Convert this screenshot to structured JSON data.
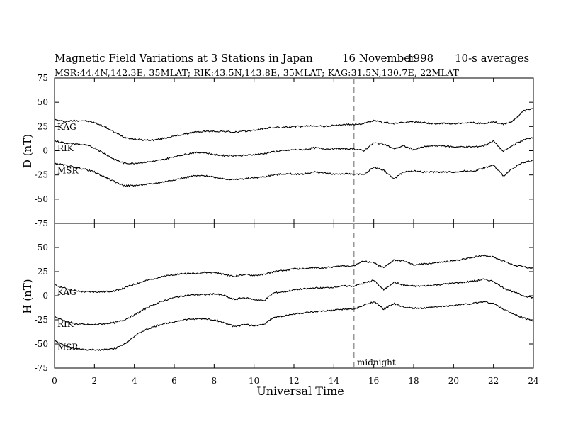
{
  "header": {
    "title": "Magnetic Field Variations at 3 Stations in Japan",
    "date_day_month": "16 November",
    "date_year": "1998",
    "averaging": "10-s averages",
    "stations": "MSR:44.4N,142.3E, 35MLAT;   RIK:43.5N,143.8E, 35MLAT;   KAG:31.5N,130.7E, 22MLAT"
  },
  "chart_data": [
    {
      "type": "line",
      "panel": "D",
      "ylabel": "D (nT)",
      "xlabel": "",
      "xlim": [
        0,
        24
      ],
      "ylim": [
        -75,
        75
      ],
      "yticks": [
        75,
        50,
        25,
        0,
        -25,
        -50,
        -75
      ],
      "xticks": [
        0,
        2,
        4,
        6,
        8,
        10,
        12,
        14,
        16,
        18,
        20,
        22,
        24
      ],
      "x": [
        0,
        0.5,
        1,
        1.5,
        2,
        2.5,
        3,
        3.5,
        4,
        4.5,
        5,
        5.5,
        6,
        6.5,
        7,
        7.5,
        8,
        8.5,
        9,
        9.5,
        10,
        10.5,
        11,
        11.5,
        12,
        12.5,
        13,
        13.5,
        14,
        14.5,
        15,
        15.5,
        16,
        16.5,
        17,
        17.5,
        18,
        18.5,
        19,
        19.5,
        20,
        20.5,
        21,
        21.5,
        22,
        22.5,
        23,
        23.5,
        24
      ],
      "series": [
        {
          "name": "KAG",
          "values": [
            32,
            30,
            31,
            31,
            29,
            25,
            19,
            14,
            12,
            11,
            11,
            13,
            15,
            17,
            19,
            20,
            20,
            20,
            19,
            20,
            21,
            23,
            24,
            24,
            25,
            25,
            26,
            25,
            26,
            27,
            27,
            28,
            31,
            29,
            28,
            29,
            30,
            29,
            28,
            28,
            28,
            28,
            29,
            28,
            30,
            27,
            31,
            41,
            44
          ]
        },
        {
          "name": "RIK",
          "values": [
            10,
            8,
            7,
            6,
            3,
            -3,
            -9,
            -13,
            -13,
            -12,
            -11,
            -9,
            -6,
            -4,
            -2,
            -2,
            -4,
            -5,
            -5,
            -5,
            -4,
            -3,
            -1,
            0,
            1,
            1,
            3,
            2,
            2,
            2,
            2,
            0,
            8,
            7,
            2,
            5,
            1,
            4,
            5,
            5,
            4,
            4,
            4,
            5,
            10,
            -1,
            6,
            11,
            14
          ]
        },
        {
          "name": "MSR",
          "values": [
            -13,
            -15,
            -17,
            -19,
            -22,
            -27,
            -32,
            -36,
            -36,
            -35,
            -34,
            -32,
            -30,
            -28,
            -26,
            -26,
            -27,
            -29,
            -30,
            -29,
            -28,
            -27,
            -25,
            -24,
            -24,
            -24,
            -22,
            -23,
            -24,
            -24,
            -24,
            -25,
            -17,
            -20,
            -29,
            -22,
            -21,
            -22,
            -22,
            -22,
            -22,
            -21,
            -21,
            -18,
            -15,
            -26,
            -18,
            -12,
            -10
          ]
        }
      ]
    },
    {
      "type": "line",
      "panel": "H",
      "ylabel": "H (nT)",
      "xlabel": "Universal Time",
      "xlim": [
        0,
        24
      ],
      "ylim": [
        -75,
        75
      ],
      "yticks": [
        50,
        25,
        0,
        -25,
        -50,
        -75
      ],
      "xticks": [
        0,
        2,
        4,
        6,
        8,
        10,
        12,
        14,
        16,
        18,
        20,
        22,
        24
      ],
      "x": [
        0,
        0.5,
        1,
        1.5,
        2,
        2.5,
        3,
        3.5,
        4,
        4.5,
        5,
        5.5,
        6,
        6.5,
        7,
        7.5,
        8,
        8.5,
        9,
        9.5,
        10,
        10.5,
        11,
        11.5,
        12,
        12.5,
        13,
        13.5,
        14,
        14.5,
        15,
        15.5,
        16,
        16.5,
        17,
        17.5,
        18,
        18.5,
        19,
        19.5,
        20,
        20.5,
        21,
        21.5,
        22,
        22.5,
        23,
        23.5,
        24
      ],
      "series": [
        {
          "name": "KAG",
          "values": [
            11,
            8,
            5,
            4,
            4,
            4,
            5,
            8,
            12,
            15,
            18,
            20,
            22,
            23,
            23,
            24,
            24,
            22,
            20,
            22,
            21,
            22,
            25,
            26,
            28,
            28,
            29,
            29,
            30,
            31,
            31,
            36,
            34,
            29,
            37,
            36,
            32,
            33,
            34,
            35,
            36,
            38,
            40,
            42,
            40,
            36,
            32,
            30,
            28
          ]
        },
        {
          "name": "RIK",
          "values": [
            -22,
            -26,
            -29,
            -30,
            -30,
            -29,
            -28,
            -25,
            -20,
            -14,
            -9,
            -5,
            -2,
            0,
            1,
            1,
            2,
            0,
            -4,
            -2,
            -4,
            -5,
            3,
            4,
            6,
            7,
            8,
            8,
            9,
            10,
            10,
            13,
            16,
            6,
            14,
            11,
            10,
            10,
            11,
            12,
            13,
            14,
            15,
            17,
            15,
            8,
            4,
            0,
            -2
          ]
        },
        {
          "name": "MSR",
          "values": [
            -46,
            -52,
            -55,
            -56,
            -56,
            -56,
            -55,
            -50,
            -42,
            -36,
            -32,
            -29,
            -27,
            -25,
            -24,
            -24,
            -25,
            -28,
            -32,
            -30,
            -31,
            -30,
            -22,
            -21,
            -19,
            -18,
            -17,
            -16,
            -15,
            -14,
            -14,
            -10,
            -6,
            -14,
            -8,
            -12,
            -13,
            -13,
            -12,
            -11,
            -10,
            -9,
            -8,
            -6,
            -8,
            -14,
            -19,
            -23,
            -26
          ]
        }
      ]
    }
  ],
  "annotations": {
    "midnight_label": "midnight",
    "midnight_ut": 15
  }
}
